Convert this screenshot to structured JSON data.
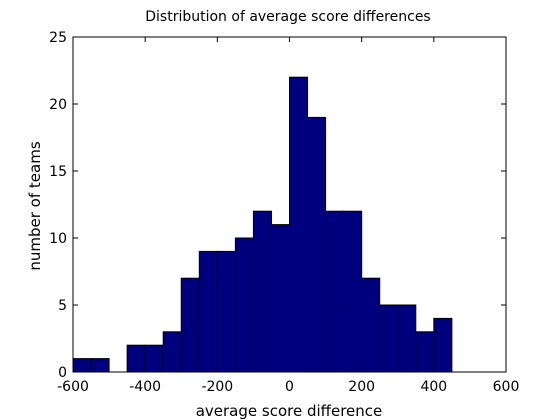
{
  "chart_data": {
    "type": "bar",
    "title": "Distribution of average score differences",
    "xlabel": "average score difference",
    "ylabel": "number of teams",
    "xlim": [
      -600,
      600
    ],
    "ylim": [
      0,
      25
    ],
    "xticks": [
      "-600",
      "-400",
      "-200",
      "0",
      "200",
      "400",
      "600"
    ],
    "yticks": [
      "0",
      "5",
      "10",
      "15",
      "20",
      "25"
    ],
    "bin_width": 50,
    "bins": [
      {
        "left": -600,
        "right": -550,
        "count": 1
      },
      {
        "left": -550,
        "right": -500,
        "count": 1
      },
      {
        "left": -500,
        "right": -450,
        "count": 0
      },
      {
        "left": -450,
        "right": -400,
        "count": 2
      },
      {
        "left": -400,
        "right": -350,
        "count": 2
      },
      {
        "left": -350,
        "right": -300,
        "count": 3
      },
      {
        "left": -300,
        "right": -250,
        "count": 7
      },
      {
        "left": -250,
        "right": -200,
        "count": 9
      },
      {
        "left": -200,
        "right": -150,
        "count": 9
      },
      {
        "left": -150,
        "right": -100,
        "count": 10
      },
      {
        "left": -100,
        "right": -50,
        "count": 12
      },
      {
        "left": -50,
        "right": 0,
        "count": 11
      },
      {
        "left": 0,
        "right": 50,
        "count": 22
      },
      {
        "left": 50,
        "right": 100,
        "count": 19
      },
      {
        "left": 100,
        "right": 150,
        "count": 12
      },
      {
        "left": 150,
        "right": 200,
        "count": 12
      },
      {
        "left": 200,
        "right": 250,
        "count": 7
      },
      {
        "left": 250,
        "right": 300,
        "count": 5
      },
      {
        "left": 300,
        "right": 350,
        "count": 5
      },
      {
        "left": 350,
        "right": 400,
        "count": 3
      },
      {
        "left": 400,
        "right": 450,
        "count": 4
      }
    ],
    "bar_color": "#00007f",
    "edge_color": "#000000",
    "grid": false,
    "box": true
  }
}
